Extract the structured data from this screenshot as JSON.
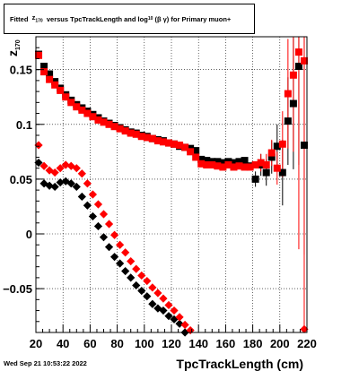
{
  "chart_data": {
    "type": "scatter",
    "title_parts": {
      "fitted": "Fitted",
      "z": "z",
      "z_sub": "170",
      "versus": "versus TpcTrackLength and log",
      "log_sub": "10",
      "beta_gamma": "(β  γ)",
      "suffix": "for Primary muon+"
    },
    "xlabel": "TpcTrackLength (cm)",
    "ylabel": "z",
    "ylabel_sub": "170",
    "xlim": [
      20,
      220
    ],
    "ylim": [
      -0.09,
      0.18
    ],
    "x_ticks": [
      20,
      40,
      60,
      80,
      100,
      120,
      140,
      160,
      180,
      200,
      220
    ],
    "y_ticks": [
      -0.05,
      0,
      0.05,
      0.1,
      0.15
    ],
    "y_tick_labels": [
      "−0.05",
      "0",
      "0.05",
      "0.1",
      "0.15"
    ],
    "grid": true,
    "colors": {
      "series_black": "#000000",
      "series_red": "#ff0000"
    },
    "series": [
      {
        "color": "#000000",
        "marker": "square",
        "points": [
          [
            22,
            0.164
          ],
          [
            26,
            0.153
          ],
          [
            30,
            0.146
          ],
          [
            34,
            0.139
          ],
          [
            38,
            0.133
          ],
          [
            42,
            0.127
          ],
          [
            46,
            0.122
          ],
          [
            50,
            0.118
          ],
          [
            54,
            0.115
          ],
          [
            58,
            0.112
          ],
          [
            62,
            0.109
          ],
          [
            66,
            0.106
          ],
          [
            70,
            0.103
          ],
          [
            74,
            0.101
          ],
          [
            78,
            0.099
          ],
          [
            82,
            0.097
          ],
          [
            86,
            0.095
          ],
          [
            90,
            0.093
          ],
          [
            94,
            0.092
          ],
          [
            98,
            0.09
          ],
          [
            102,
            0.089
          ],
          [
            106,
            0.087
          ],
          [
            110,
            0.086
          ],
          [
            114,
            0.085
          ],
          [
            118,
            0.083
          ],
          [
            122,
            0.082
          ],
          [
            126,
            0.08
          ],
          [
            130,
            0.079
          ],
          [
            134,
            0.078
          ],
          [
            138,
            0.076
          ],
          [
            142,
            0.068
          ],
          [
            146,
            0.067
          ],
          [
            150,
            0.066
          ],
          [
            154,
            0.066
          ],
          [
            158,
            0.065
          ],
          [
            162,
            0.066
          ],
          [
            166,
            0.065
          ],
          [
            170,
            0.066
          ],
          [
            174,
            0.067
          ],
          [
            178,
            0.062
          ],
          [
            182,
            0.05
          ],
          [
            186,
            0.063
          ],
          [
            190,
            0.056
          ],
          [
            194,
            0.07
          ],
          [
            198,
            0.08
          ],
          [
            202,
            0.056
          ],
          [
            206,
            0.103
          ],
          [
            210,
            0.119
          ],
          [
            214,
            0.153
          ],
          [
            218,
            0.081
          ]
        ],
        "errors": [
          [
            182,
            0.007
          ],
          [
            186,
            0.01
          ],
          [
            190,
            0.012
          ],
          [
            194,
            0.015
          ],
          [
            198,
            0.02
          ],
          [
            202,
            0.03
          ],
          [
            206,
            0.04
          ],
          [
            210,
            0.06
          ],
          [
            214,
            0.09
          ],
          [
            218,
            0.1
          ]
        ]
      },
      {
        "color": "#ff0000",
        "marker": "square",
        "points": [
          [
            22,
            0.163
          ],
          [
            26,
            0.148
          ],
          [
            30,
            0.141
          ],
          [
            34,
            0.136
          ],
          [
            38,
            0.131
          ],
          [
            42,
            0.125
          ],
          [
            46,
            0.12
          ],
          [
            50,
            0.116
          ],
          [
            54,
            0.113
          ],
          [
            58,
            0.11
          ],
          [
            62,
            0.107
          ],
          [
            66,
            0.104
          ],
          [
            70,
            0.102
          ],
          [
            74,
            0.1
          ],
          [
            78,
            0.098
          ],
          [
            82,
            0.096
          ],
          [
            86,
            0.094
          ],
          [
            90,
            0.092
          ],
          [
            94,
            0.091
          ],
          [
            98,
            0.089
          ],
          [
            102,
            0.088
          ],
          [
            106,
            0.087
          ],
          [
            110,
            0.085
          ],
          [
            114,
            0.084
          ],
          [
            118,
            0.083
          ],
          [
            122,
            0.082
          ],
          [
            126,
            0.081
          ],
          [
            130,
            0.079
          ],
          [
            134,
            0.075
          ],
          [
            138,
            0.07
          ],
          [
            142,
            0.064
          ],
          [
            146,
            0.063
          ],
          [
            150,
            0.063
          ],
          [
            154,
            0.062
          ],
          [
            158,
            0.061
          ],
          [
            162,
            0.063
          ],
          [
            166,
            0.061
          ],
          [
            170,
            0.062
          ],
          [
            174,
            0.061
          ],
          [
            178,
            0.061
          ],
          [
            182,
            0.063
          ],
          [
            186,
            0.065
          ],
          [
            190,
            0.063
          ],
          [
            194,
            0.074
          ],
          [
            198,
            0.06
          ],
          [
            202,
            0.082
          ],
          [
            206,
            0.128
          ],
          [
            210,
            0.145
          ],
          [
            214,
            0.166
          ],
          [
            218,
            0.158
          ]
        ],
        "errors": [
          [
            186,
            0.008
          ],
          [
            190,
            0.01
          ],
          [
            194,
            0.012
          ],
          [
            198,
            0.015
          ],
          [
            202,
            0.03
          ],
          [
            206,
            0.05
          ],
          [
            210,
            0.07
          ],
          [
            214,
            0.18
          ],
          [
            218,
            0.25
          ]
        ]
      },
      {
        "color": "#000000",
        "marker": "diamond",
        "points": [
          [
            22,
            0.065
          ],
          [
            26,
            0.046
          ],
          [
            30,
            0.044
          ],
          [
            34,
            0.043
          ],
          [
            38,
            0.047
          ],
          [
            42,
            0.048
          ],
          [
            46,
            0.046
          ],
          [
            50,
            0.043
          ],
          [
            54,
            0.034
          ],
          [
            58,
            0.026
          ],
          [
            62,
            0.016
          ],
          [
            66,
            0.007
          ],
          [
            70,
            -0.003
          ],
          [
            74,
            -0.012
          ],
          [
            78,
            -0.021
          ],
          [
            82,
            -0.027
          ],
          [
            86,
            -0.034
          ],
          [
            90,
            -0.04
          ],
          [
            94,
            -0.047
          ],
          [
            98,
            -0.052
          ],
          [
            102,
            -0.057
          ],
          [
            106,
            -0.064
          ],
          [
            110,
            -0.068
          ],
          [
            114,
            -0.07
          ],
          [
            118,
            -0.075
          ],
          [
            122,
            -0.078
          ],
          [
            126,
            -0.082
          ],
          [
            130,
            -0.09
          ]
        ]
      },
      {
        "color": "#ff0000",
        "marker": "diamond",
        "points": [
          [
            22,
            0.081
          ],
          [
            26,
            0.062
          ],
          [
            30,
            0.058
          ],
          [
            34,
            0.056
          ],
          [
            38,
            0.06
          ],
          [
            42,
            0.063
          ],
          [
            46,
            0.062
          ],
          [
            50,
            0.06
          ],
          [
            54,
            0.055
          ],
          [
            58,
            0.046
          ],
          [
            62,
            0.036
          ],
          [
            66,
            0.027
          ],
          [
            70,
            0.018
          ],
          [
            74,
            0.009
          ],
          [
            78,
            -0.001
          ],
          [
            82,
            -0.01
          ],
          [
            86,
            -0.017
          ],
          [
            90,
            -0.025
          ],
          [
            94,
            -0.032
          ],
          [
            98,
            -0.038
          ],
          [
            102,
            -0.043
          ],
          [
            106,
            -0.049
          ],
          [
            110,
            -0.054
          ],
          [
            114,
            -0.059
          ],
          [
            118,
            -0.065
          ],
          [
            122,
            -0.07
          ],
          [
            126,
            -0.076
          ],
          [
            130,
            -0.083
          ],
          [
            134,
            -0.088
          ],
          [
            218,
            -0.087
          ]
        ]
      }
    ]
  },
  "footer": {
    "timestamp": "Wed Sep 21 10:53:22 2022"
  }
}
